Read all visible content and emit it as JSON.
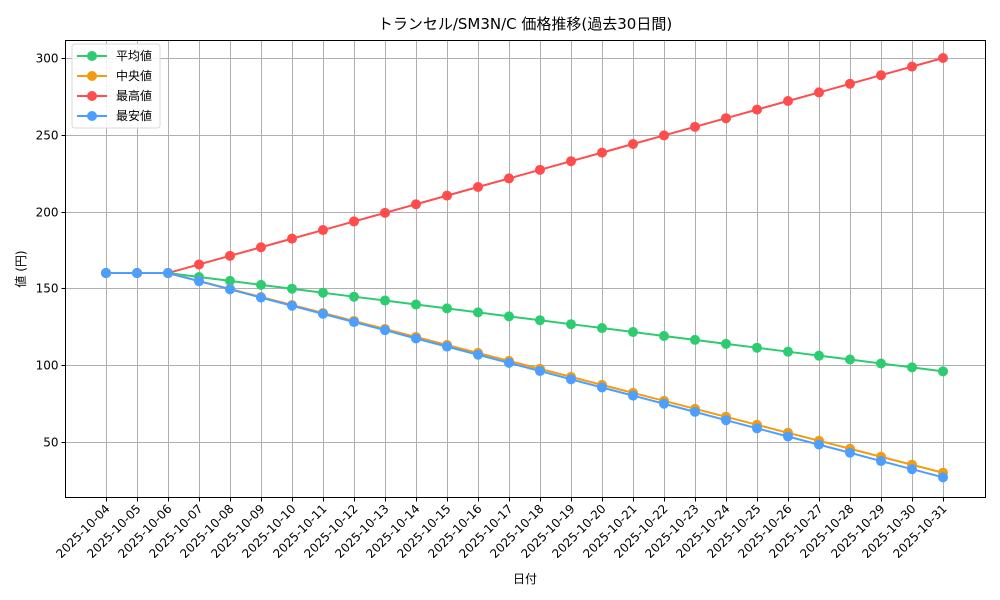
{
  "chart_data": {
    "type": "line",
    "title": "トランセル/SM3N/C 価格推移(過去30日間)",
    "xlabel": "日付",
    "ylabel": "値 (円)",
    "ylim": [
      13,
      313
    ],
    "yticks": [
      50,
      100,
      150,
      200,
      250,
      300
    ],
    "grid": true,
    "legend_position": "upper left",
    "categories": [
      "2025-10-04",
      "2025-10-05",
      "2025-10-06",
      "2025-10-07",
      "2025-10-08",
      "2025-10-09",
      "2025-10-10",
      "2025-10-11",
      "2025-10-12",
      "2025-10-13",
      "2025-10-14",
      "2025-10-15",
      "2025-10-16",
      "2025-10-17",
      "2025-10-18",
      "2025-10-19",
      "2025-10-20",
      "2025-10-21",
      "2025-10-22",
      "2025-10-23",
      "2025-10-24",
      "2025-10-25",
      "2025-10-26",
      "2025-10-27",
      "2025-10-28",
      "2025-10-29",
      "2025-10-30",
      "2025-10-31"
    ],
    "series": [
      {
        "name": "平均値",
        "color": "#2ecc71",
        "values": [
          160,
          160,
          160,
          157.4,
          154.9,
          152.3,
          149.8,
          147.2,
          144.6,
          142.1,
          139.5,
          137.0,
          134.4,
          131.8,
          129.3,
          126.7,
          124.2,
          121.6,
          119.0,
          116.5,
          113.9,
          111.4,
          108.8,
          106.2,
          103.7,
          101.1,
          98.6,
          96.0
        ]
      },
      {
        "name": "中央値",
        "color": "#f39c12",
        "values": [
          160,
          160,
          160,
          154.8,
          149.6,
          144.4,
          139.2,
          134.0,
          128.8,
          123.6,
          118.4,
          113.2,
          108.0,
          102.8,
          97.6,
          92.4,
          87.2,
          82.0,
          76.8,
          71.6,
          66.4,
          61.2,
          56.0,
          50.8,
          45.6,
          40.4,
          35.2,
          30.0
        ]
      },
      {
        "name": "最高値",
        "color": "#ff4d4d",
        "values": [
          160,
          160,
          160,
          165.6,
          171.2,
          176.8,
          182.4,
          188.0,
          193.6,
          199.2,
          204.8,
          210.4,
          216.0,
          221.6,
          227.2,
          232.8,
          238.4,
          244.0,
          249.6,
          255.2,
          260.8,
          266.4,
          272.0,
          277.6,
          283.2,
          288.8,
          294.4,
          300.0
        ]
      },
      {
        "name": "最安値",
        "color": "#4d9fff",
        "values": [
          160,
          160,
          160,
          154.7,
          149.4,
          144.0,
          138.7,
          133.4,
          128.1,
          122.8,
          117.4,
          112.1,
          106.8,
          101.5,
          96.2,
          90.8,
          85.5,
          80.2,
          74.9,
          69.6,
          64.2,
          58.9,
          53.6,
          48.3,
          43.0,
          37.6,
          32.3,
          27.0
        ]
      }
    ]
  }
}
